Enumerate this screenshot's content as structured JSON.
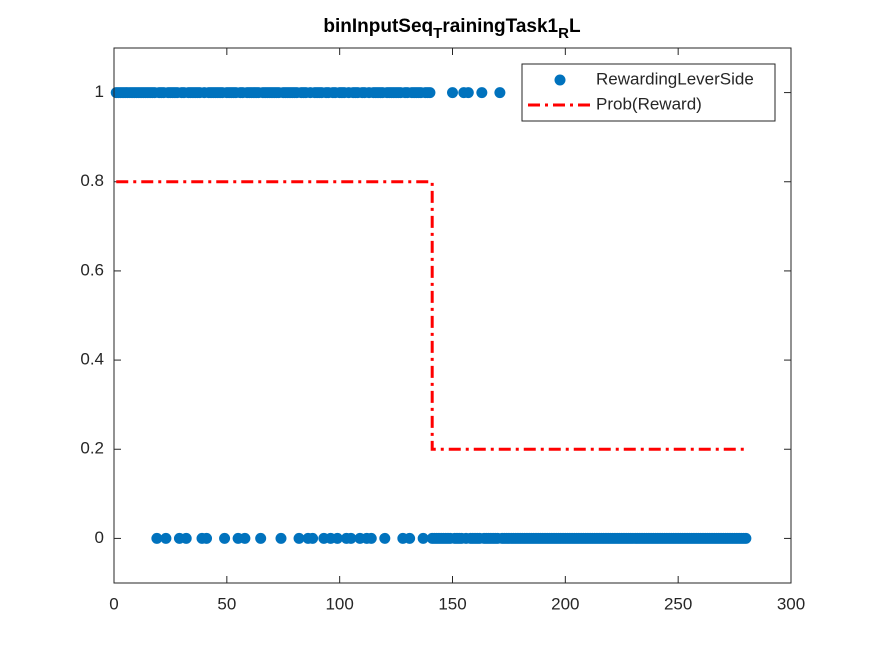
{
  "chart_data": {
    "type": "scatter",
    "title": [
      "binInputSeq",
      "T",
      "rainingTask1",
      "R",
      "L"
    ],
    "xlim": [
      0,
      300
    ],
    "xticks": [
      0,
      50,
      100,
      150,
      200,
      250,
      300
    ],
    "ylim": [
      -0.1,
      1.1
    ],
    "yticks": [
      0,
      0.2,
      0.4,
      0.6,
      0.8,
      1
    ],
    "grid": false,
    "legend": "northeast",
    "series": [
      {
        "name": "RewardingLeverSide",
        "type": "scatter",
        "color": "#0072BD",
        "x": [
          1,
          2,
          3,
          4,
          5,
          6,
          7,
          8,
          9,
          10,
          11,
          12,
          13,
          14,
          15,
          16,
          17,
          18,
          19,
          20,
          21,
          22,
          23,
          24,
          25,
          26,
          27,
          28,
          29,
          30,
          31,
          32,
          33,
          34,
          35,
          36,
          37,
          38,
          39,
          40,
          41,
          42,
          43,
          44,
          45,
          46,
          47,
          48,
          49,
          50,
          51,
          52,
          53,
          54,
          55,
          56,
          57,
          58,
          59,
          60,
          61,
          62,
          63,
          64,
          65,
          66,
          67,
          68,
          69,
          70,
          71,
          72,
          73,
          74,
          75,
          76,
          77,
          78,
          79,
          80,
          81,
          82,
          83,
          84,
          85,
          86,
          87,
          88,
          89,
          90,
          91,
          92,
          93,
          94,
          95,
          96,
          97,
          98,
          99,
          100,
          101,
          102,
          103,
          104,
          105,
          106,
          107,
          108,
          109,
          110,
          111,
          112,
          113,
          114,
          115,
          116,
          117,
          118,
          119,
          120,
          121,
          122,
          123,
          124,
          125,
          126,
          127,
          128,
          129,
          130,
          131,
          132,
          133,
          134,
          135,
          136,
          137,
          138,
          139,
          140,
          141,
          142,
          143,
          144,
          145,
          146,
          147,
          148,
          149,
          150,
          151,
          152,
          153,
          154,
          155,
          156,
          157,
          158,
          159,
          160,
          161,
          162,
          163,
          164,
          165,
          166,
          167,
          168,
          169,
          170,
          171,
          172,
          173,
          174,
          175,
          176,
          177,
          178,
          179,
          180,
          181,
          182,
          183,
          184,
          185,
          186,
          187,
          188,
          189,
          190,
          191,
          192,
          193,
          194,
          195,
          196,
          197,
          198,
          199,
          200,
          201,
          202,
          203,
          204,
          205,
          206,
          207,
          208,
          209,
          210,
          211,
          212,
          213,
          214,
          215,
          216,
          217,
          218,
          219,
          220,
          221,
          222,
          223,
          224,
          225,
          226,
          227,
          228,
          229,
          230,
          231,
          232,
          233,
          234,
          235,
          236,
          237,
          238,
          239,
          240,
          241,
          242,
          243,
          244,
          245,
          246,
          247,
          248,
          249,
          250,
          251,
          252,
          253,
          254,
          255,
          256,
          257,
          258,
          259,
          260,
          261,
          262,
          263,
          264,
          265,
          266,
          267,
          268,
          269,
          270,
          271,
          272,
          273,
          274,
          275,
          276,
          277,
          278,
          279,
          280
        ],
        "values": [
          1,
          1,
          1,
          1,
          1,
          1,
          1,
          1,
          1,
          1,
          1,
          1,
          1,
          1,
          1,
          1,
          1,
          1,
          0,
          1,
          1,
          1,
          0,
          1,
          1,
          1,
          1,
          1,
          0,
          1,
          1,
          0,
          1,
          1,
          1,
          1,
          1,
          1,
          0,
          1,
          0,
          1,
          1,
          1,
          1,
          1,
          1,
          1,
          0,
          1,
          1,
          1,
          1,
          1,
          0,
          1,
          1,
          0,
          1,
          1,
          1,
          1,
          1,
          1,
          0,
          1,
          1,
          1,
          1,
          1,
          1,
          1,
          1,
          0,
          1,
          1,
          1,
          1,
          1,
          1,
          1,
          0,
          1,
          1,
          1,
          0,
          1,
          0,
          1,
          1,
          1,
          1,
          0,
          1,
          1,
          0,
          1,
          1,
          0,
          1,
          1,
          1,
          0,
          1,
          0,
          1,
          1,
          1,
          0,
          1,
          1,
          0,
          1,
          0,
          1,
          1,
          1,
          1,
          1,
          0,
          1,
          1,
          1,
          1,
          1,
          1,
          1,
          0,
          1,
          1,
          0,
          1,
          1,
          1,
          1,
          1,
          0,
          1,
          1,
          1,
          0,
          0,
          0,
          0,
          0,
          0,
          0,
          0,
          0,
          1,
          0,
          0,
          0,
          0,
          1,
          0,
          1,
          0,
          0,
          0,
          0,
          0,
          1,
          0,
          0,
          0,
          0,
          0,
          0,
          0,
          1,
          0,
          0,
          0,
          0,
          0,
          0,
          0,
          0,
          0,
          0,
          0,
          0,
          0,
          0,
          0,
          0,
          0,
          0,
          0,
          0,
          0,
          0,
          0,
          0,
          0,
          0,
          0,
          0,
          0,
          0,
          0,
          0,
          0,
          0,
          0,
          0,
          0,
          0,
          0,
          0,
          0,
          0,
          0,
          0,
          0,
          0,
          0,
          0,
          0,
          0,
          0,
          0,
          0,
          0,
          0,
          0,
          0,
          0,
          0,
          0,
          0,
          0,
          0,
          0,
          0,
          0,
          0,
          0,
          0,
          0,
          0,
          0,
          0,
          0,
          0,
          0,
          0,
          0,
          0,
          0,
          0,
          0,
          0,
          0,
          0,
          0,
          0,
          0,
          0,
          0,
          0,
          0,
          0,
          0,
          0,
          0,
          0,
          0,
          0,
          0,
          0,
          0,
          0,
          0,
          0,
          0,
          0,
          0,
          0
        ]
      },
      {
        "name": "Prob(Reward)",
        "type": "line",
        "color": "#FF0000",
        "x": [
          1,
          141,
          141,
          280
        ],
        "values": [
          0.8,
          0.8,
          0.2,
          0.2
        ]
      }
    ]
  }
}
